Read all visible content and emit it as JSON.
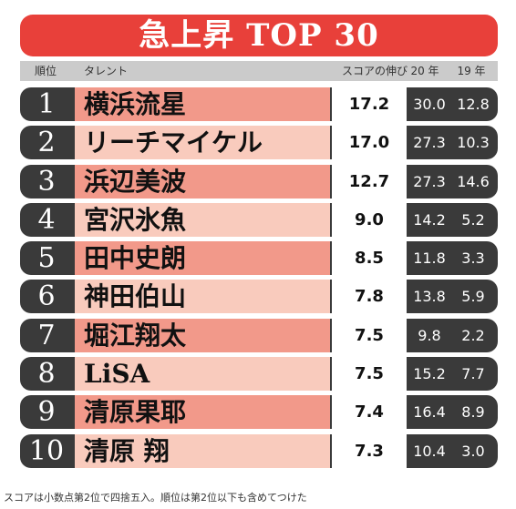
{
  "title": "急上昇 TOP 30",
  "columns": {
    "rank": "順位",
    "talent": "タレント",
    "score": "スコアの伸び",
    "y20": "20 年",
    "y19": "19 年"
  },
  "rows": [
    {
      "rank": "1",
      "name": "横浜流星",
      "score": "17.2",
      "y20": "30.0",
      "y19": "12.8"
    },
    {
      "rank": "2",
      "name": "リーチマイケル",
      "score": "17.0",
      "y20": "27.3",
      "y19": "10.3"
    },
    {
      "rank": "3",
      "name": "浜辺美波",
      "score": "12.7",
      "y20": "27.3",
      "y19": "14.6"
    },
    {
      "rank": "4",
      "name": "宮沢氷魚",
      "score": "9.0",
      "y20": "14.2",
      "y19": "5.2"
    },
    {
      "rank": "5",
      "name": "田中史朗",
      "score": "8.5",
      "y20": "11.8",
      "y19": "3.3"
    },
    {
      "rank": "6",
      "name": "神田伯山",
      "score": "7.8",
      "y20": "13.8",
      "y19": "5.9"
    },
    {
      "rank": "7",
      "name": "堀江翔太",
      "score": "7.5",
      "y20": "9.8",
      "y19": "2.2"
    },
    {
      "rank": "8",
      "name": "LiSA",
      "score": "7.5",
      "y20": "15.2",
      "y19": "7.7"
    },
    {
      "rank": "9",
      "name": "清原果耶",
      "score": "7.4",
      "y20": "16.4",
      "y19": "8.9"
    },
    {
      "rank": "10",
      "name": "清原 翔",
      "score": "7.3",
      "y20": "10.4",
      "y19": "3.0"
    }
  ],
  "footnote": "スコアは小数点第2位で四捨五入。順位は第2位以下も含めてつけた",
  "colors": {
    "banner": "#e8403a",
    "row_dark": "#3a3a3a",
    "name_odd": "#f2998a",
    "name_even": "#f9cbbd",
    "header": "#cbcbcb"
  }
}
